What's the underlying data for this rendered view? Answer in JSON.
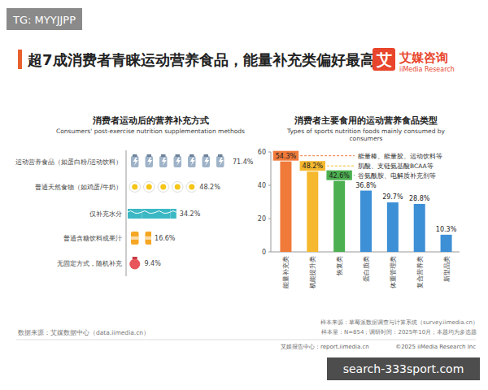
{
  "header": {
    "tag": "TG: MYYJJPP",
    "title": "超7成消费者青睐运动营养食品，能量补充类偏好最高",
    "logo_icon": "艾",
    "logo_cn": "艾媒咨询",
    "logo_en": "iiMedia Research"
  },
  "chart_data": [
    {
      "type": "bar",
      "orientation": "horizontal",
      "title": "消费者运动后的营养补充方式",
      "subtitle": "Consumers' post-exercise nutrition supplementation methods",
      "categories": [
        "运动营养食品（如蛋白粉/运动饮料）",
        "普通天然食物（如鸡蛋/牛奶）",
        "仅补充水分",
        "普通含糖饮料或果汁",
        "无固定方式，随机补充"
      ],
      "values": [
        71.4,
        48.2,
        34.2,
        16.6,
        9.4
      ],
      "value_labels": [
        "71.4%",
        "48.2%",
        "34.2%",
        "16.6%",
        "9.4%"
      ],
      "colors": [
        "#9fb3c8",
        "#f5c518",
        "#3bb8c4",
        "#f5a623",
        "#e8555a"
      ],
      "xlim": [
        0,
        100
      ],
      "tick_labels": false,
      "data_labels": true,
      "source": "数据来源：艾媒数据中心（data.iimedia.cn）"
    },
    {
      "type": "bar",
      "title": "消费者主要食用的运动营养食品类型",
      "subtitle": "Types of sports nutrition foods mainly consumed by consumers",
      "categories": [
        "能量补充类",
        "机能提升类",
        "恢复类",
        "蛋白质类",
        "体重管理类",
        "复合营养类",
        "新型品类"
      ],
      "values": [
        54.3,
        48.2,
        42.6,
        36.8,
        29.7,
        28.8,
        10.3
      ],
      "value_labels": [
        "54.3%",
        "48.2%",
        "42.6%",
        "36.8%",
        "29.7%",
        "28.8%",
        "10.3%"
      ],
      "colors": [
        "#f07a3a",
        "#f5b82e",
        "#4caf50",
        "#3d8fd6",
        "#3d8fd6",
        "#3d8fd6",
        "#3d8fd6"
      ],
      "ylim": [
        0,
        60
      ],
      "yticks": [
        0,
        20,
        40,
        60
      ],
      "grid": false,
      "data_labels": true,
      "annotations": [
        "能量棒、能量胶、运动饮料等",
        "肌酸、支链氨基酸BCAA等",
        "谷氨酰胺、电解质补充剂等"
      ],
      "notes": [
        "样本来源：草莓派数据调查与计算系统（survey.iimedia.cn）",
        "样本量：N=854；调研时间：2025年10月；本题均为多选题"
      ]
    }
  ],
  "footer": {
    "site": "艾媒报告中心：report.iimedia.cn",
    "copyright": "©2025  iiMedia Research Inc",
    "watermark": "search-333sport.com"
  }
}
